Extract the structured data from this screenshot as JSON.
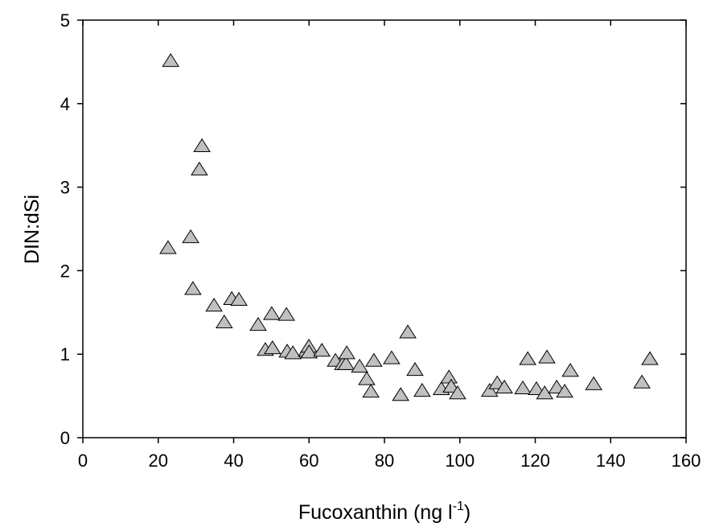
{
  "chart_data": {
    "type": "scatter",
    "xlabel": {
      "text": "Fucoxanthin (ng l",
      "superscript": "-1",
      "suffix": ")"
    },
    "ylabel": "DIN:dSi",
    "x": [
      23.3,
      31.6,
      30.9,
      22.6,
      28.6,
      29.2,
      34.8,
      37.5,
      39.5,
      41.4,
      46.5,
      50.1,
      54.0,
      48.4,
      50.3,
      54.2,
      55.7,
      59.3,
      59.95,
      60.0,
      63.4,
      67.0,
      68.9,
      69.8,
      70.0,
      73.4,
      75.3,
      76.4,
      77.2,
      81.9,
      86.2,
      84.3,
      88.1,
      90.0,
      95.1,
      97.1,
      97.7,
      99.4,
      107.9,
      109.9,
      111.8,
      116.7,
      118.0,
      120.3,
      122.5,
      123.1,
      125.7,
      127.8,
      129.3,
      135.5,
      148.3,
      150.4
    ],
    "series": [
      {
        "color": "#c0c0c0",
        "values": [
          4.51,
          3.49,
          3.21,
          2.27,
          2.4,
          1.78,
          1.58,
          1.38,
          1.66,
          1.65,
          1.35,
          1.48,
          1.47,
          1.05,
          1.07,
          1.03,
          1.01,
          1.04,
          1.09,
          1.02,
          1.04,
          0.92,
          0.88,
          0.88,
          1.01,
          0.85,
          0.7,
          0.55,
          0.92,
          0.95,
          1.26,
          0.51,
          0.81,
          0.56,
          0.58,
          0.72,
          0.61,
          0.53,
          0.56,
          0.65,
          0.6,
          0.59,
          0.94,
          0.58,
          0.53,
          0.96,
          0.6,
          0.55,
          0.8,
          0.64,
          0.66,
          0.94
        ]
      }
    ],
    "xlim": [
      0,
      160
    ],
    "xticks": [
      0,
      20,
      40,
      60,
      80,
      100,
      120,
      140,
      160
    ],
    "ylim": [
      0,
      5
    ],
    "yticks": [
      0,
      1,
      2,
      3,
      4,
      5
    ],
    "marker": "triangle",
    "grid": false
  }
}
